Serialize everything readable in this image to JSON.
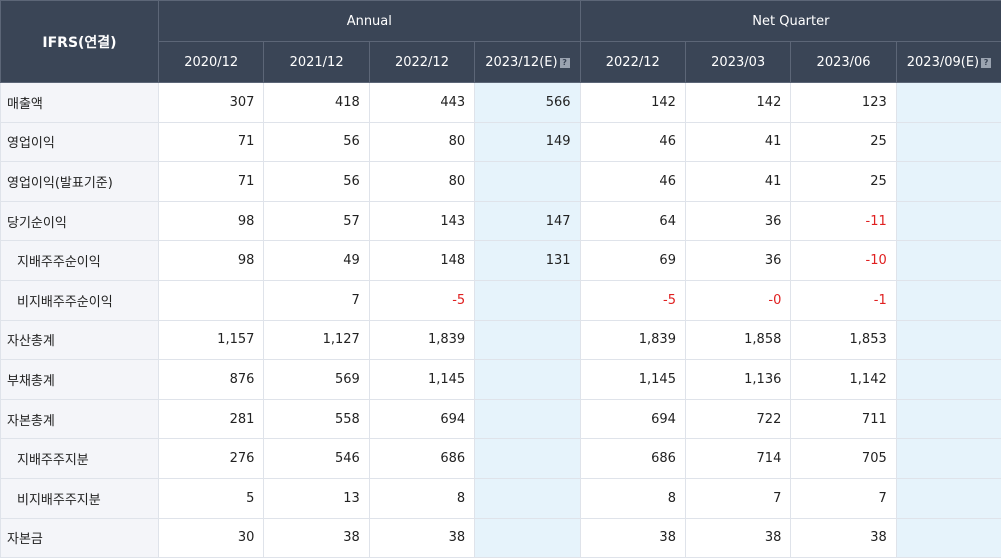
{
  "header": {
    "ifrs": "IFRS(연결)",
    "annual": "Annual",
    "net_quarter": "Net Quarter",
    "periods": [
      "2020/12",
      "2021/12",
      "2022/12",
      "2023/12(E)",
      "2022/12",
      "2023/03",
      "2023/06",
      "2023/09(E)"
    ],
    "info_glyph": "?"
  },
  "rows": [
    {
      "label": "매출액",
      "values": [
        "307",
        "418",
        "443",
        "566",
        "142",
        "142",
        "123",
        ""
      ]
    },
    {
      "label": "영업이익",
      "values": [
        "71",
        "56",
        "80",
        "149",
        "46",
        "41",
        "25",
        ""
      ]
    },
    {
      "label": "영업이익(발표기준)",
      "values": [
        "71",
        "56",
        "80",
        "",
        "46",
        "41",
        "25",
        ""
      ]
    },
    {
      "label": "당기순이익",
      "values": [
        "98",
        "57",
        "143",
        "147",
        "64",
        "36",
        "-11",
        ""
      ]
    },
    {
      "label": "지배주주순이익",
      "values": [
        "98",
        "49",
        "148",
        "131",
        "69",
        "36",
        "-10",
        ""
      ]
    },
    {
      "label": "비지배주주순이익",
      "values": [
        "",
        "7",
        "-5",
        "",
        "-5",
        "-0",
        "-1",
        ""
      ]
    },
    {
      "label": "자산총계",
      "values": [
        "1,157",
        "1,127",
        "1,839",
        "",
        "1,839",
        "1,858",
        "1,853",
        ""
      ]
    },
    {
      "label": "부채총계",
      "values": [
        "876",
        "569",
        "1,145",
        "",
        "1,145",
        "1,136",
        "1,142",
        ""
      ]
    },
    {
      "label": "자본총계",
      "values": [
        "281",
        "558",
        "694",
        "",
        "694",
        "722",
        "711",
        ""
      ]
    },
    {
      "label": "지배주주지분",
      "values": [
        "276",
        "546",
        "686",
        "",
        "686",
        "714",
        "705",
        ""
      ]
    },
    {
      "label": "비지배주주지분",
      "values": [
        "5",
        "13",
        "8",
        "",
        "8",
        "7",
        "7",
        ""
      ]
    },
    {
      "label": "자본금",
      "values": [
        "30",
        "38",
        "38",
        "",
        "38",
        "38",
        "38",
        ""
      ]
    }
  ]
}
